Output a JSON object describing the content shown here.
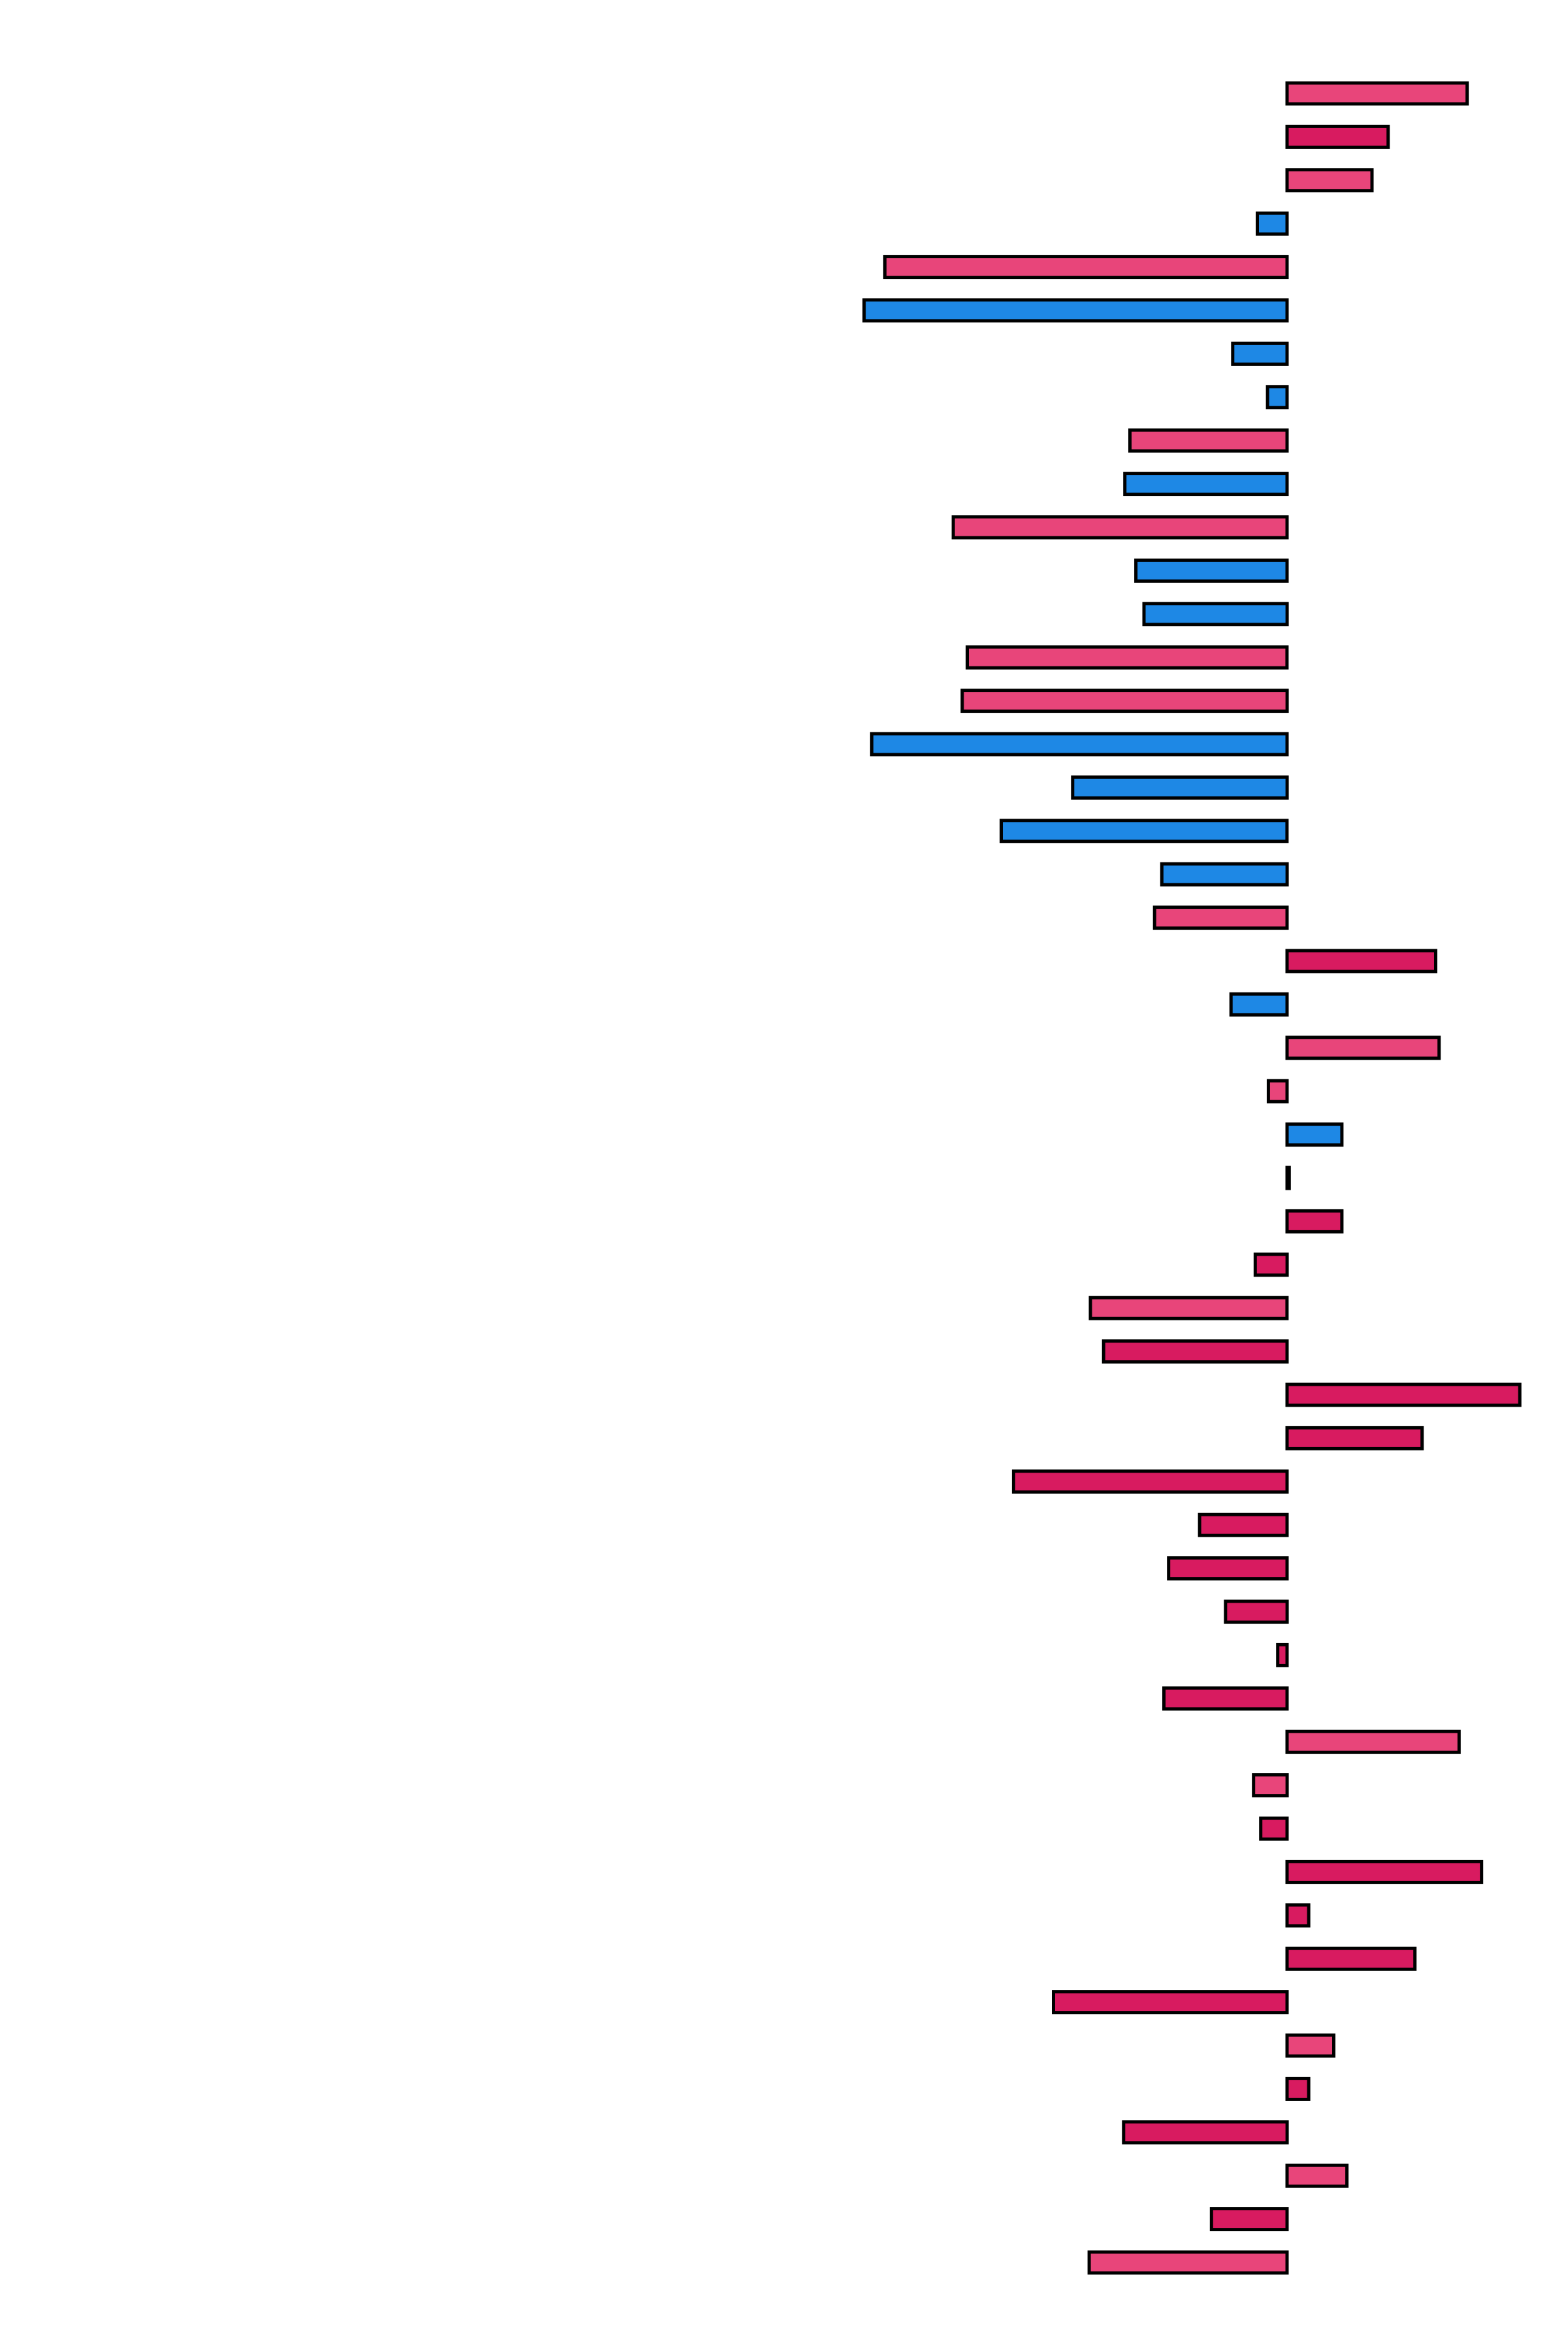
{
  "chart_data": {
    "type": "bar",
    "orientation": "horizontal",
    "title": "",
    "xlabel": "",
    "ylabel": "",
    "xlim": [
      -100,
      55
    ],
    "grid": false,
    "legend": "none",
    "colors": {
      "pink": "#E8457A",
      "crimson": "#D81B60",
      "blue": "#1E88E5",
      "stroke": "#000000"
    },
    "values": [
      42.4,
      23.8,
      20.0,
      -7.0,
      -94.7,
      -99.6,
      -12.8,
      -4.6,
      -37.0,
      -38.2,
      -78.6,
      -35.6,
      -33.7,
      -75.3,
      -76.5,
      -97.8,
      -50.5,
      -67.3,
      -29.5,
      -31.2,
      35.0,
      -13.2,
      35.8,
      -4.4,
      12.9,
      0.5,
      12.9,
      -7.5,
      -46.3,
      -43.2,
      54.8,
      31.8,
      -64.4,
      -20.6,
      -27.9,
      -14.5,
      -2.2,
      -29.0,
      40.5,
      -7.9,
      -6.2,
      45.8,
      5.1,
      30.1,
      -55.0,
      11.0,
      5.1,
      -38.5,
      14.1,
      -17.8,
      -46.6
    ],
    "bar_colors": [
      "pink",
      "crimson",
      "pink",
      "blue",
      "pink",
      "blue",
      "blue",
      "blue",
      "pink",
      "blue",
      "pink",
      "blue",
      "blue",
      "pink",
      "pink",
      "blue",
      "blue",
      "blue",
      "blue",
      "pink",
      "crimson",
      "blue",
      "pink",
      "pink",
      "blue",
      "crimson",
      "crimson",
      "crimson",
      "pink",
      "crimson",
      "crimson",
      "crimson",
      "crimson",
      "crimson",
      "crimson",
      "crimson",
      "crimson",
      "crimson",
      "pink",
      "pink",
      "crimson",
      "crimson",
      "crimson",
      "crimson",
      "crimson",
      "pink",
      "crimson",
      "crimson",
      "pink",
      "crimson",
      "pink"
    ]
  }
}
